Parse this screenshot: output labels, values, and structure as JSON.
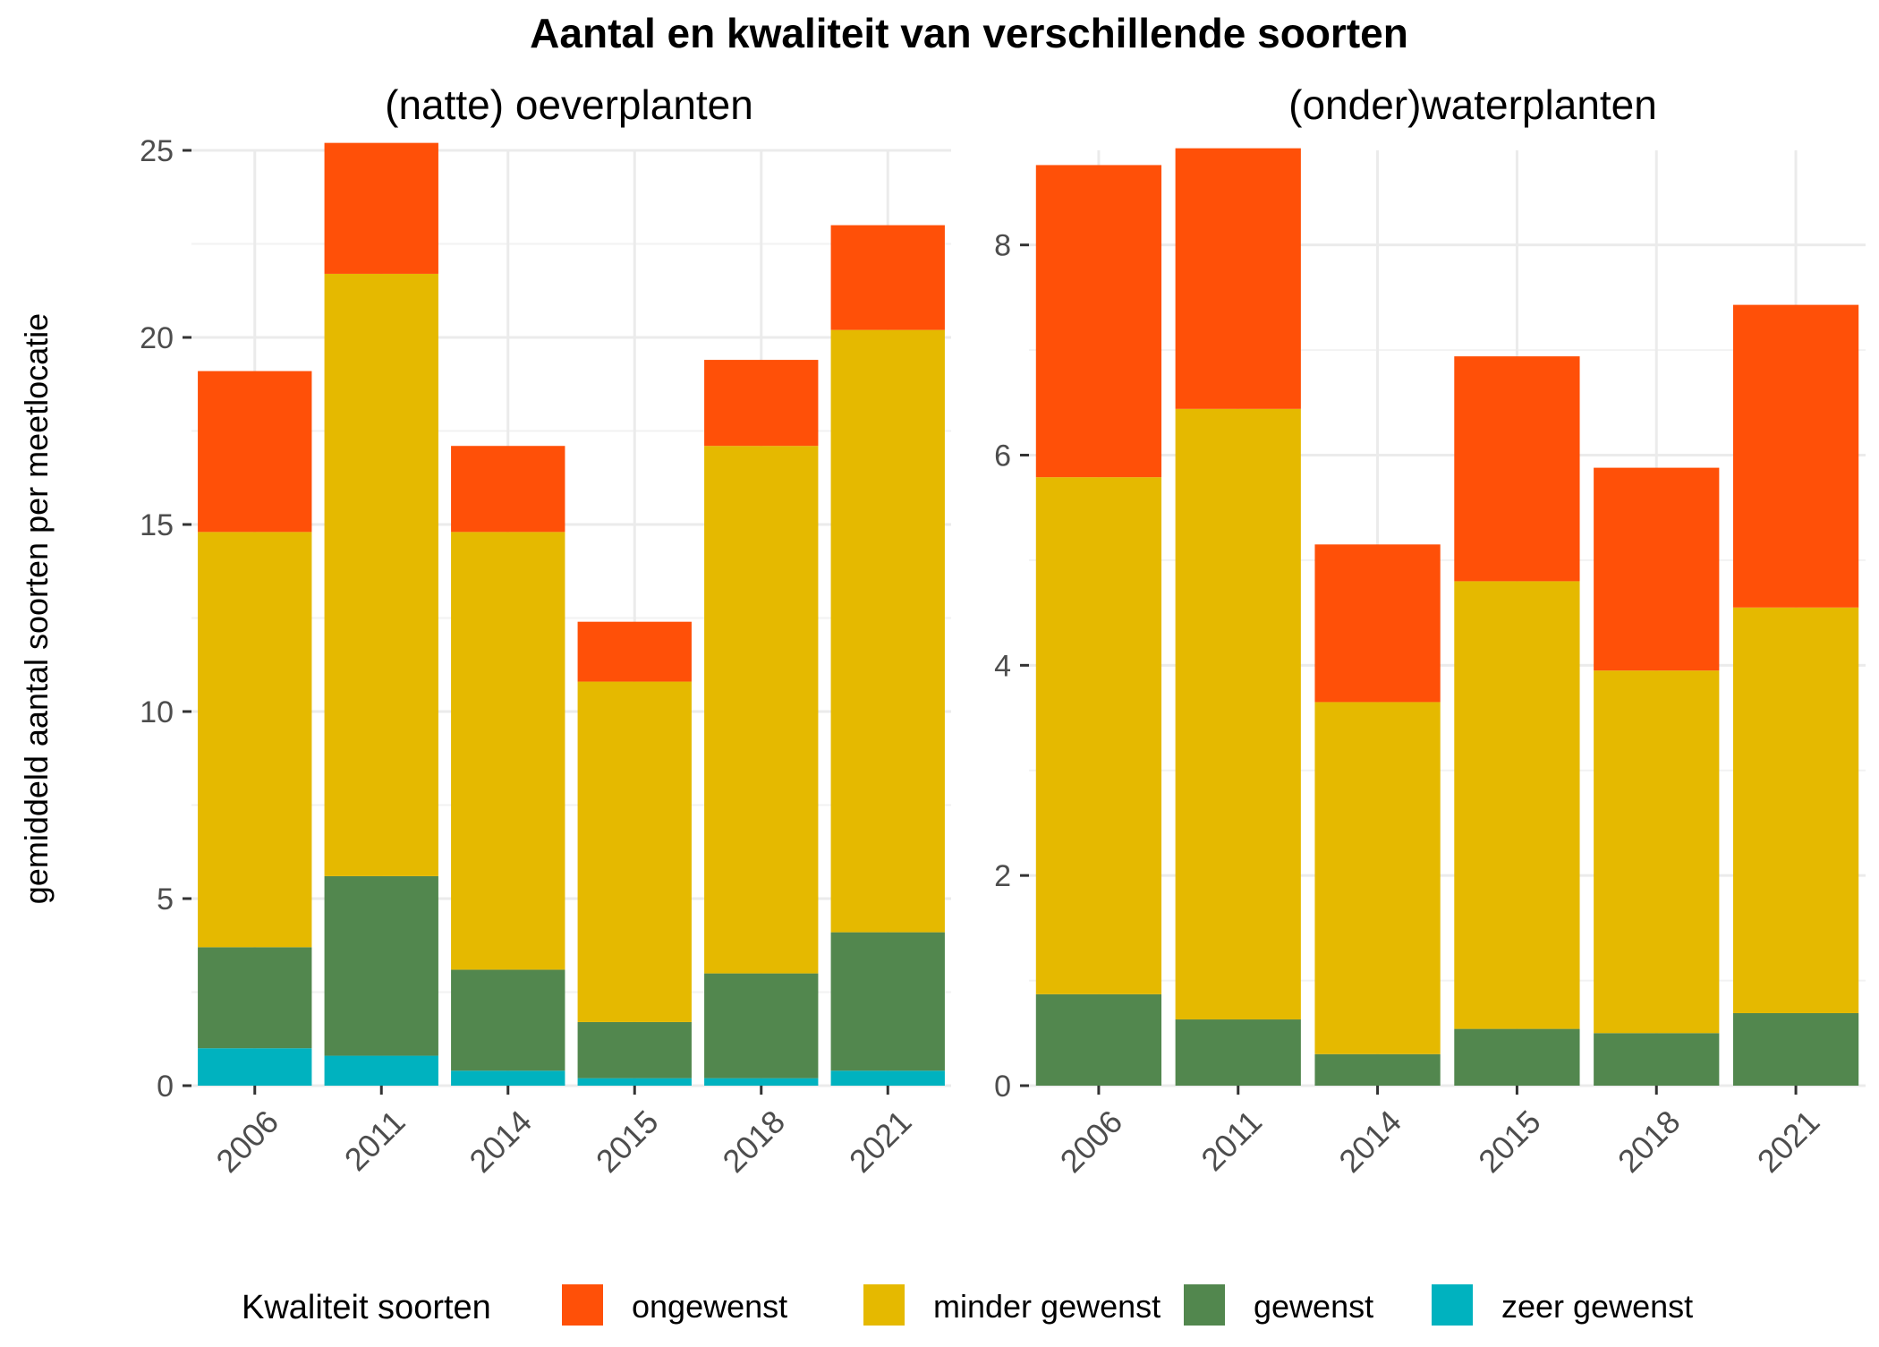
{
  "title": "Aantal en kwaliteit van verschillende soorten",
  "ylabel": "gemiddeld aantal soorten per meetlocatie",
  "legend": {
    "title": "Kwaliteit soorten",
    "position": "bottom",
    "items": [
      {
        "label": "ongewenst",
        "color": "#FF5008"
      },
      {
        "label": "minder gewenst",
        "color": "#E5B900"
      },
      {
        "label": "gewenst",
        "color": "#52874E"
      },
      {
        "label": "zeer gewenst",
        "color": "#00B2BF"
      }
    ]
  },
  "chart_data": [
    {
      "type": "bar",
      "stacked": true,
      "title": "(natte) oeverplanten",
      "categories": [
        "2006",
        "2011",
        "2014",
        "2015",
        "2018",
        "2021"
      ],
      "ylim": [
        0,
        25
      ],
      "yticks": [
        0,
        5,
        10,
        15,
        20,
        25
      ],
      "grid": true,
      "series": [
        {
          "name": "zeer gewenst",
          "color": "#00B2BF",
          "values": [
            1.0,
            0.8,
            0.4,
            0.2,
            0.2,
            0.4
          ]
        },
        {
          "name": "gewenst",
          "color": "#52874E",
          "values": [
            2.7,
            4.8,
            2.7,
            1.5,
            2.8,
            3.7
          ]
        },
        {
          "name": "minder gewenst",
          "color": "#E5B900",
          "values": [
            11.1,
            16.1,
            11.7,
            9.1,
            14.1,
            16.1
          ]
        },
        {
          "name": "ongewenst",
          "color": "#FF5008",
          "values": [
            4.3,
            3.5,
            2.3,
            1.6,
            2.3,
            2.8
          ]
        }
      ]
    },
    {
      "type": "bar",
      "stacked": true,
      "title": "(onder)waterplanten",
      "categories": [
        "2006",
        "2011",
        "2014",
        "2015",
        "2018",
        "2021"
      ],
      "ylim": [
        0,
        8.9
      ],
      "yticks": [
        0,
        2,
        4,
        6,
        8
      ],
      "grid": true,
      "series": [
        {
          "name": "zeer gewenst",
          "color": "#00B2BF",
          "values": [
            0,
            0,
            0,
            0,
            0,
            0
          ]
        },
        {
          "name": "gewenst",
          "color": "#52874E",
          "values": [
            0.87,
            0.63,
            0.3,
            0.54,
            0.5,
            0.69
          ]
        },
        {
          "name": "minder gewenst",
          "color": "#E5B900",
          "values": [
            4.92,
            5.81,
            3.35,
            4.26,
            3.45,
            3.86
          ]
        },
        {
          "name": "ongewenst",
          "color": "#FF5008",
          "values": [
            2.97,
            2.48,
            1.5,
            2.14,
            1.93,
            2.88
          ]
        }
      ]
    }
  ]
}
